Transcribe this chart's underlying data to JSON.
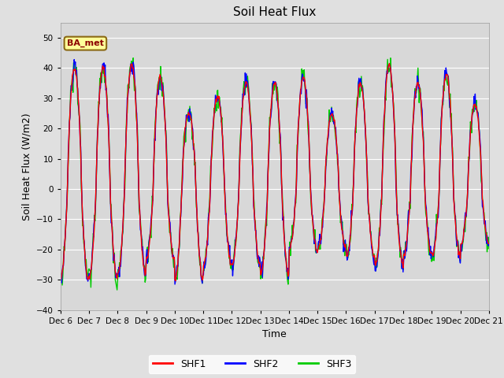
{
  "title": "Soil Heat Flux",
  "xlabel": "Time",
  "ylabel": "Soil Heat Flux (W/m2)",
  "ylim": [
    -40,
    55
  ],
  "yticks": [
    -40,
    -30,
    -20,
    -10,
    0,
    10,
    20,
    30,
    40,
    50
  ],
  "annotation_text": "BA_met",
  "legend_labels": [
    "SHF1",
    "SHF2",
    "SHF3"
  ],
  "legend_colors": [
    "#FF0000",
    "#0000FF",
    "#00CC00"
  ],
  "line_width": 1.0,
  "background_color": "#E0E0E0",
  "plot_bg_color": "#D8D8D8",
  "grid_color": "#FFFFFF",
  "days": 15,
  "xtick_labels": [
    "Dec 6",
    "Dec 7",
    "Dec 8",
    "Dec 9",
    "Dec 10",
    "Dec 11",
    "Dec 12",
    "Dec 13",
    "Dec 14",
    "Dec 15",
    "Dec 16",
    "Dec 17",
    "Dec 18",
    "Dec 19",
    "Dec 20",
    "Dec 21"
  ],
  "day_amplitudes": [
    40,
    40,
    41,
    37,
    25,
    31,
    35,
    35,
    37,
    25,
    35,
    41,
    35,
    38,
    28
  ],
  "night_depths": [
    -30,
    -29,
    -28,
    -23,
    -30,
    -25,
    -25,
    -28,
    -20,
    -20,
    -22,
    -25,
    -22,
    -22,
    -18
  ]
}
